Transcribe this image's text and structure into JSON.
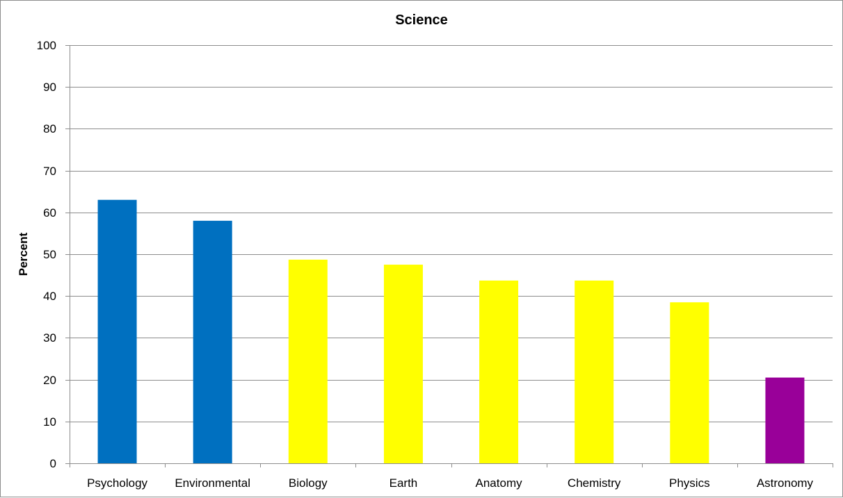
{
  "chart_data": {
    "type": "bar",
    "title": "Science",
    "xlabel": "",
    "ylabel": "Percent",
    "categories": [
      "Psychology",
      "Environmental",
      "Biology",
      "Earth",
      "Anatomy",
      "Chemistry",
      "Physics",
      "Astronomy"
    ],
    "values": [
      63,
      58,
      48.7,
      47.5,
      43.7,
      43.7,
      38.5,
      20.5
    ],
    "bar_colors": [
      "#0070C0",
      "#0070C0",
      "#FFFF00",
      "#FFFF00",
      "#FFFF00",
      "#FFFF00",
      "#FFFF00",
      "#990099"
    ],
    "ylim": [
      0,
      100
    ],
    "yticks": [
      "0",
      "10",
      "20",
      "30",
      "40",
      "50",
      "60",
      "70",
      "80",
      "90",
      "100"
    ],
    "grid": true,
    "legend": "none",
    "gridline_color": "#8c8c8c"
  }
}
